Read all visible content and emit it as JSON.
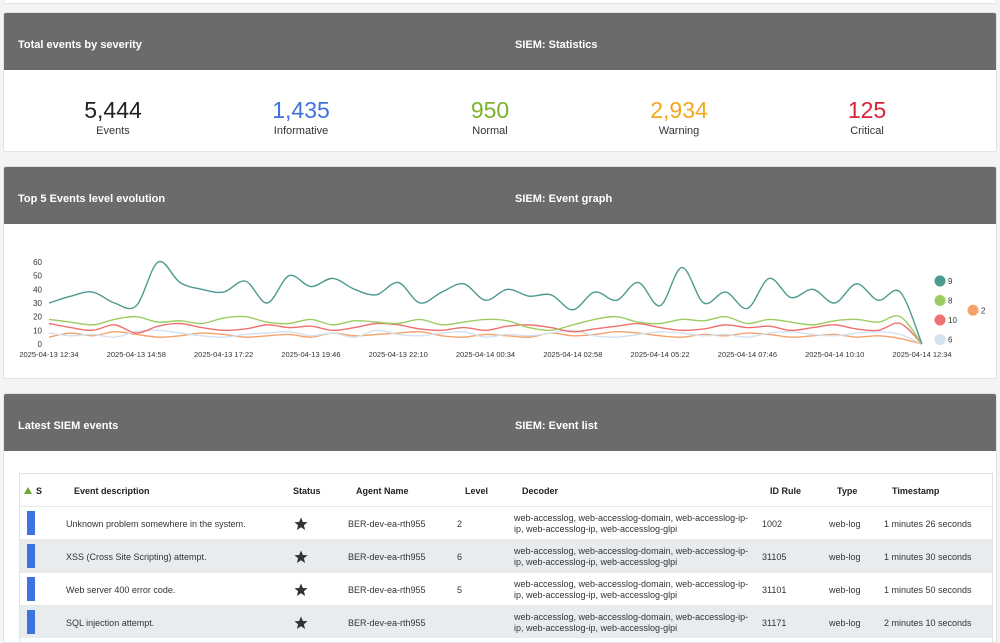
{
  "statistics": {
    "title": "Total events by severity",
    "subtitle": "SIEM: Statistics",
    "items": [
      {
        "value": "5,444",
        "label": "Events",
        "color": "#222222"
      },
      {
        "value": "1,435",
        "label": "Informative",
        "color": "#3d72e0"
      },
      {
        "value": "950",
        "label": "Normal",
        "color": "#7cb32b"
      },
      {
        "value": "2,934",
        "label": "Warning",
        "color": "#f0a81c"
      },
      {
        "value": "125",
        "label": "Critical",
        "color": "#d8233a"
      }
    ]
  },
  "event_graph": {
    "title": "Top 5 Events level evolution",
    "subtitle": "SIEM: Event graph",
    "chart": {
      "type": "line",
      "categories": [
        "2025-04-13 12:34",
        null,
        null,
        null,
        "2025-04-13 14:58",
        null,
        null,
        null,
        "2025-04-13 17:22",
        null,
        null,
        null,
        "2025-04-13 19:46",
        null,
        null,
        null,
        "2025-04-13 22:10",
        null,
        null,
        null,
        "2025-04-14 00:34",
        null,
        null,
        null,
        "2025-04-14 02:58",
        null,
        null,
        null,
        "2025-04-14 05:22",
        null,
        null,
        null,
        "2025-04-14 07:46",
        null,
        null,
        null,
        "2025-04-14 10:10",
        null,
        null,
        null,
        "2025-04-14 12:34"
      ],
      "ylim": [
        0,
        60
      ],
      "yticks": [
        0,
        10,
        20,
        30,
        40,
        50,
        60
      ],
      "series": [
        {
          "name": "9",
          "color": "#4d9a90",
          "values": [
            30,
            35,
            38,
            30,
            28,
            60,
            45,
            40,
            38,
            46,
            30,
            50,
            42,
            48,
            40,
            36,
            45,
            30,
            38,
            44,
            32,
            40,
            35,
            36,
            25,
            38,
            32,
            45,
            28,
            56,
            30,
            38,
            26,
            48,
            34,
            40,
            30,
            44,
            32,
            38,
            0
          ]
        },
        {
          "name": "8",
          "color": "#9ccc62",
          "values": [
            18,
            16,
            14,
            18,
            20,
            16,
            17,
            15,
            19,
            20,
            16,
            15,
            18,
            14,
            17,
            16,
            15,
            18,
            14,
            16,
            18,
            17,
            12,
            10,
            14,
            18,
            20,
            16,
            15,
            18,
            17,
            20,
            15,
            18,
            16,
            14,
            17,
            18,
            16,
            20,
            0
          ]
        },
        {
          "name": "10",
          "color": "#f07070",
          "values": [
            15,
            12,
            10,
            14,
            8,
            13,
            15,
            12,
            10,
            11,
            14,
            12,
            13,
            10,
            12,
            15,
            14,
            11,
            10,
            12,
            10,
            13,
            14,
            12,
            9,
            11,
            13,
            15,
            12,
            10,
            11,
            14,
            12,
            13,
            10,
            12,
            14,
            11,
            10,
            15,
            0
          ]
        },
        {
          "name": "6",
          "color": "#d3e2f0",
          "values": [
            8,
            6,
            7,
            5,
            9,
            10,
            8,
            6,
            5,
            7,
            8,
            9,
            6,
            8,
            5,
            10,
            7,
            6,
            8,
            9,
            5,
            7,
            6,
            8,
            10,
            6,
            5,
            7,
            9,
            8,
            6,
            7,
            5,
            8,
            9,
            7,
            6,
            8,
            9,
            7,
            0
          ]
        },
        {
          "name": "2",
          "color": "#f5a26b",
          "values": [
            5,
            8,
            6,
            9,
            7,
            5,
            6,
            8,
            7,
            5,
            6,
            7,
            5,
            8,
            6,
            7,
            8,
            9,
            6,
            5,
            7,
            6,
            5,
            8,
            6,
            7,
            9,
            8,
            6,
            5,
            7,
            6,
            8,
            7,
            5,
            6,
            7,
            5,
            6,
            4,
            0
          ]
        }
      ]
    }
  },
  "event_list": {
    "title": "Latest SIEM events",
    "subtitle": "SIEM: Event list",
    "columns": [
      "S",
      "Event description",
      "Status",
      "Agent Name",
      "Level",
      "Decoder",
      "ID Rule",
      "Type",
      "Timestamp"
    ],
    "rows": [
      {
        "description": "Unknown problem somewhere in the system.",
        "agent": "BER-dev-ea-rth955",
        "level": "2",
        "decoder": "web-accesslog, web-accesslog-domain, web-accesslog-ip-ip, web-accesslog-ip, web-accesslog-glpi",
        "id_rule": "1002",
        "type": "web-log",
        "timestamp": "1 minutes 26 seconds"
      },
      {
        "description": "XSS (Cross Site Scripting) attempt.",
        "agent": "BER-dev-ea-rth955",
        "level": "6",
        "decoder": "web-accesslog, web-accesslog-domain, web-accesslog-ip-ip, web-accesslog-ip, web-accesslog-glpi",
        "id_rule": "31105",
        "type": "web-log",
        "timestamp": "1 minutes 30 seconds"
      },
      {
        "description": "Web server 400 error code.",
        "agent": "BER-dev-ea-rth955",
        "level": "5",
        "decoder": "web-accesslog, web-accesslog-domain, web-accesslog-ip-ip, web-accesslog-ip, web-accesslog-glpi",
        "id_rule": "31101",
        "type": "web-log",
        "timestamp": "1 minutes 50 seconds"
      },
      {
        "description": "SQL injection attempt.",
        "agent": "BER-dev-ea-rth955",
        "level": null,
        "decoder": "web-accesslog, web-accesslog-domain, web-accesslog-ip-ip, web-accesslog-ip, web-accesslog-glpi",
        "id_rule": "31171",
        "type": "web-log",
        "timestamp": "2 minutes 10 seconds"
      }
    ]
  }
}
